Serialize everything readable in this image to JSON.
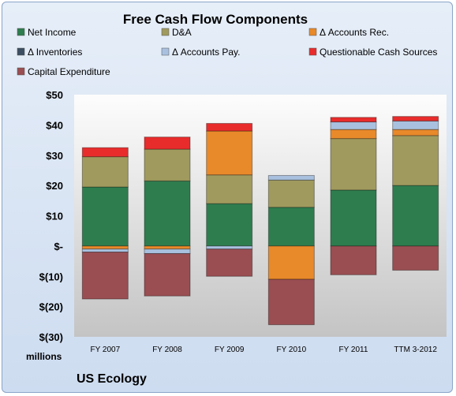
{
  "chart_data": {
    "type": "bar",
    "stacked": true,
    "title": "Free Cash Flow Components",
    "categories": [
      "FY 2007",
      "FY 2008",
      "FY 2009",
      "FY 2010",
      "FY 2011",
      "TTM 3-2012"
    ],
    "ylim": [
      -30,
      50
    ],
    "yticks": [
      50,
      40,
      30,
      20,
      10,
      0,
      -10,
      -20,
      -30
    ],
    "ytick_labels": [
      "$50",
      "$40",
      "$30",
      "$20",
      "$10",
      "$-",
      "$(10)",
      "$(20)",
      "$(30)"
    ],
    "ylabel_unit": "millions",
    "legend_placement": "top",
    "grid": false,
    "series": [
      {
        "name": "Net Income",
        "color": "#2e7d4f",
        "values": [
          19.5,
          21.5,
          14,
          12.8,
          18.5,
          20
        ]
      },
      {
        "name": "D&A",
        "color": "#a09a5e",
        "values": [
          10,
          10.5,
          9.5,
          9,
          17,
          16.5
        ]
      },
      {
        "name": "Δ Accounts Rec.",
        "color": "#e8892a",
        "values": [
          -1,
          -1,
          14.5,
          -11,
          3,
          2
        ]
      },
      {
        "name": "Δ Inventories",
        "color": "#3c4e62",
        "values": [
          0,
          0,
          0,
          0,
          0,
          0
        ]
      },
      {
        "name": "Δ Accounts Pay.",
        "color": "#a9c1df",
        "values": [
          -1,
          -1.5,
          -1,
          1.5,
          2.5,
          2.8
        ]
      },
      {
        "name": "Questionable Cash Sources",
        "color": "#e82c2c",
        "values": [
          3,
          4,
          2.5,
          0,
          1.5,
          1.5
        ]
      },
      {
        "name": "Capital Expenditure",
        "color": "#9a4e52",
        "values": [
          -15.5,
          -14,
          -9,
          -15,
          -9.5,
          -8
        ]
      }
    ]
  },
  "footer": {
    "unit_label": "millions",
    "brand": "US Ecology"
  }
}
